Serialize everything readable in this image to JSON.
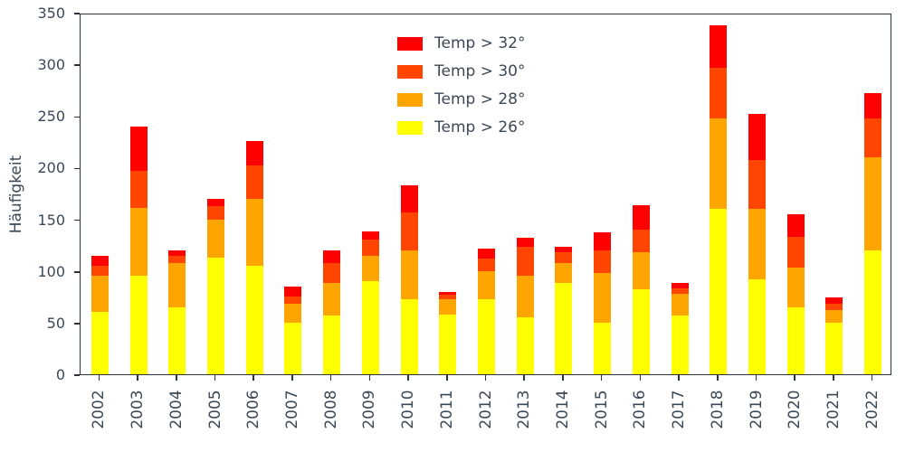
{
  "colors": {
    "text": "#3d4856",
    "spine": "#2b333d",
    "temp32": "#ff0000",
    "temp30": "#ff4500",
    "temp28": "#ffa500",
    "temp26": "#ffff00"
  },
  "chart_data": {
    "type": "bar",
    "stacked": true,
    "title": "",
    "xlabel": "",
    "ylabel": "Häufigkeit",
    "ylim": [
      0,
      350
    ],
    "yticks": [
      0,
      50,
      100,
      150,
      200,
      250,
      300,
      350
    ],
    "grid": false,
    "legend_position": "upper center",
    "legend_order": [
      "Temp > 32°",
      "Temp > 30°",
      "Temp > 28°",
      "Temp > 26°"
    ],
    "categories": [
      "2002",
      "2003",
      "2004",
      "2005",
      "2006",
      "2007",
      "2008",
      "2009",
      "2010",
      "2011",
      "2012",
      "2013",
      "2014",
      "2015",
      "2016",
      "2017",
      "2018",
      "2019",
      "2020",
      "2021",
      "2022"
    ],
    "series": [
      {
        "name": "Temp > 26°",
        "color": "#ffff00",
        "values": [
          60,
          95,
          65,
          113,
          105,
          50,
          57,
          90,
          73,
          58,
          73,
          55,
          88,
          50,
          82,
          57,
          160,
          92,
          65,
          50,
          120
        ]
      },
      {
        "name": "Temp > 28°",
        "color": "#ffa500",
        "values": [
          35,
          66,
          43,
          37,
          65,
          18,
          31,
          25,
          47,
          15,
          27,
          40,
          20,
          48,
          36,
          21,
          88,
          68,
          38,
          12,
          90
        ]
      },
      {
        "name": "Temp > 30°",
        "color": "#ff4500",
        "values": [
          10,
          36,
          7,
          13,
          32,
          7,
          20,
          15,
          37,
          4,
          12,
          28,
          10,
          22,
          22,
          5,
          49,
          47,
          30,
          6,
          38
        ]
      },
      {
        "name": "Temp > 32°",
        "color": "#ff0000",
        "values": [
          10,
          43,
          5,
          7,
          24,
          10,
          12,
          8,
          26,
          3,
          10,
          9,
          5,
          17,
          24,
          5,
          41,
          45,
          22,
          6,
          24
        ]
      }
    ]
  }
}
